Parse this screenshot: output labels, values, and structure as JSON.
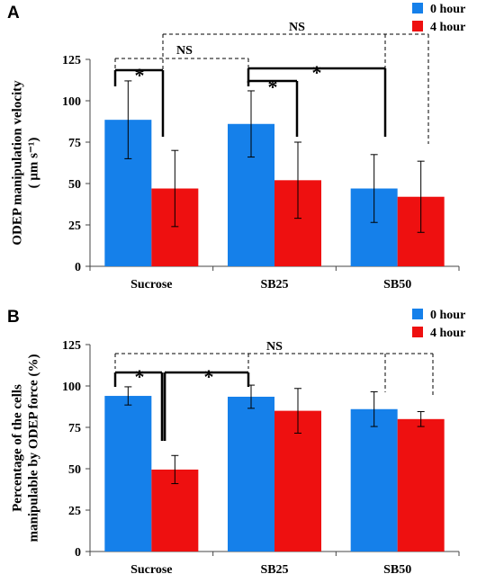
{
  "chart_data": [
    {
      "panel_label": "A",
      "type": "bar",
      "categories": [
        "Sucrose",
        "SB25",
        "SB50"
      ],
      "series": [
        {
          "name": "0 hour",
          "color": "#1580ea",
          "values": [
            88.5,
            86,
            47
          ],
          "errors": [
            23.5,
            20,
            20.5
          ]
        },
        {
          "name": "4 hour",
          "color": "#ee1010",
          "values": [
            47,
            52,
            42
          ],
          "errors": [
            23,
            23,
            21.5
          ]
        }
      ],
      "ylabel_line1": "ODEP manipulation velocity",
      "ylabel_line2": "( μm s⁻¹)",
      "ylim": [
        0,
        125
      ],
      "yticks": [
        0,
        25,
        50,
        75,
        100,
        125
      ],
      "grid": false,
      "legend_position": "top-right",
      "annotations": [
        {
          "text": "NS",
          "kind": "dashed"
        },
        {
          "text": "NS",
          "kind": "dashed"
        },
        {
          "text": "*",
          "kind": "solid"
        },
        {
          "text": "*",
          "kind": "solid"
        },
        {
          "text": "*",
          "kind": "solid"
        }
      ]
    },
    {
      "panel_label": "B",
      "type": "bar",
      "categories": [
        "Sucrose",
        "SB25",
        "SB50"
      ],
      "series": [
        {
          "name": "0 hour",
          "color": "#1580ea",
          "values": [
            94,
            93.5,
            86
          ],
          "errors": [
            5.5,
            7,
            10.5
          ]
        },
        {
          "name": "4 hour",
          "color": "#ee1010",
          "values": [
            49.5,
            85,
            80
          ],
          "errors": [
            8.5,
            13.5,
            4.5
          ]
        }
      ],
      "ylabel_line1": "Percentage of the cells",
      "ylabel_line2": "manipulable by ODEP force (%)",
      "ylim": [
        0,
        125
      ],
      "yticks": [
        0,
        25,
        50,
        75,
        100,
        125
      ],
      "grid": false,
      "legend_position": "top-right",
      "annotations": [
        {
          "text": "NS",
          "kind": "dashed"
        },
        {
          "text": "*",
          "kind": "solid"
        },
        {
          "text": "*",
          "kind": "solid"
        }
      ]
    }
  ]
}
